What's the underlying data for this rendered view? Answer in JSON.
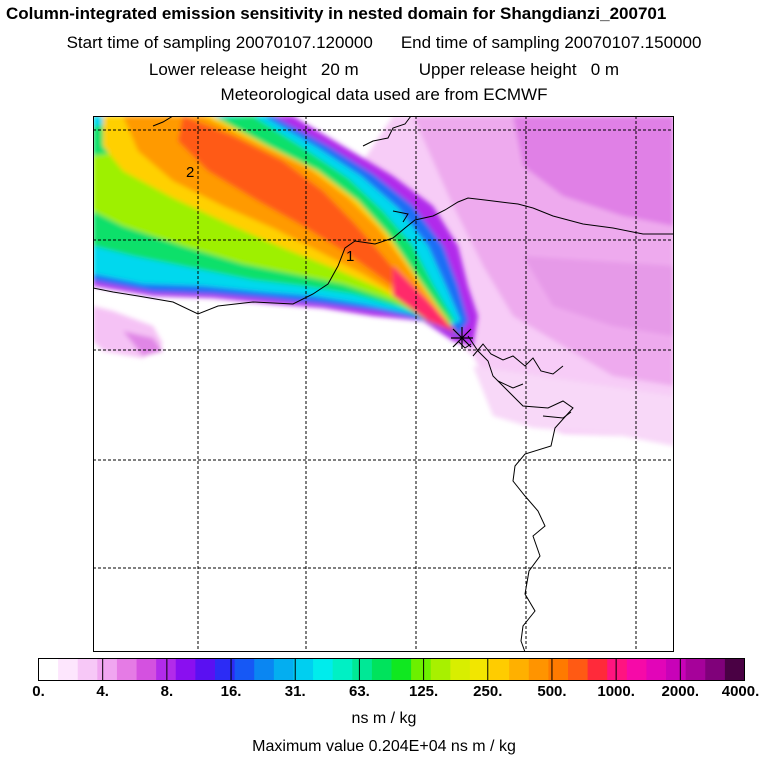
{
  "title": "Column-integrated emission sensitivity in nested domain for Shangdianzi_200701",
  "sampling": {
    "start_label": "Start time of sampling",
    "start_value": "20070107.120000",
    "end_label": "End time of sampling",
    "end_value": "20070107.150000"
  },
  "release": {
    "lower_label": "Lower release height",
    "lower_value": "20 m",
    "upper_label": "Upper release height",
    "upper_value": "0 m"
  },
  "met_line": "Meteorological data used are from ECMWF",
  "map": {
    "contour_labels": [
      "1",
      "2"
    ],
    "receptor_icon": "receptor-cross-icon"
  },
  "colorbar": {
    "tick_labels": [
      "0.",
      "4.",
      "8.",
      "16.",
      "31.",
      "63.",
      "125.",
      "250.",
      "500.",
      "1000.",
      "2000.",
      "4000."
    ],
    "colors": [
      "#ffffff",
      "#fde6fd",
      "#f7c8f7",
      "#f0a6f0",
      "#e57be5",
      "#d451e0",
      "#b22bea",
      "#8a0ff0",
      "#5a10f2",
      "#2c2cf5",
      "#1658f5",
      "#0a86f2",
      "#04aef0",
      "#00cff0",
      "#00ecec",
      "#00f0c4",
      "#00e896",
      "#00e35c",
      "#10e820",
      "#6cf000",
      "#a8f000",
      "#d8ee00",
      "#f2e600",
      "#ffcc00",
      "#ffb000",
      "#ff9400",
      "#ff7a00",
      "#ff5a14",
      "#ff2a3a",
      "#ff1480",
      "#f60aa8",
      "#e205b8",
      "#c802b8",
      "#a6029a",
      "#80017a",
      "#4a0144"
    ],
    "unit": "ns m / kg"
  },
  "max_value_line": "Maximum value  0.204E+04 ns m / kg",
  "colors": {
    "coast": "#000000",
    "grid": "#000000"
  }
}
